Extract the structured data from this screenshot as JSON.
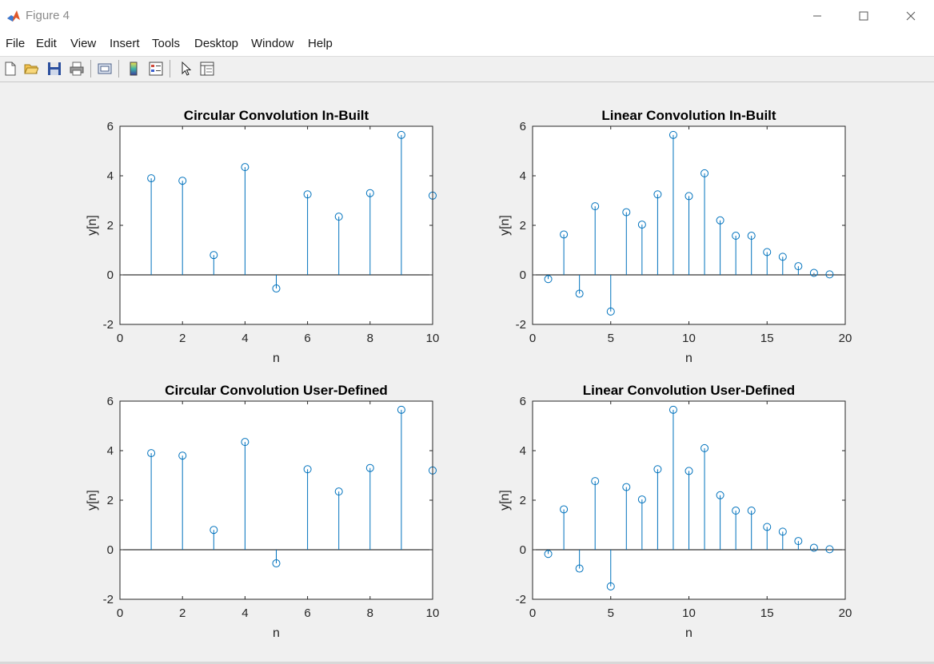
{
  "window": {
    "title": "Figure 4",
    "controls": {
      "minimize": "—",
      "maximize": "☐",
      "close": "✕"
    }
  },
  "menu": [
    "File",
    "Edit",
    "View",
    "Insert",
    "Tools",
    "Desktop",
    "Window",
    "Help"
  ],
  "toolbar": {
    "buttons": [
      "new-figure-icon",
      "open-file-icon",
      "save-icon",
      "print-icon",
      "link-plot-icon",
      "colorbar-icon",
      "legend-icon",
      "pointer-icon",
      "property-inspector-icon"
    ]
  },
  "colors": {
    "stem": "#0072BD",
    "axes_bg": "#ffffff",
    "figure_bg": "#f0f0f0",
    "text": "#262626"
  },
  "chart_data": [
    {
      "type": "scatter",
      "style": "stem",
      "title": "Circular Convolution In-Built",
      "xlabel": "n",
      "ylabel": "y[n]",
      "xlim": [
        0,
        10
      ],
      "ylim": [
        -2,
        6
      ],
      "xticks": [
        0,
        2,
        4,
        6,
        8,
        10
      ],
      "yticks": [
        -2,
        0,
        2,
        4,
        6
      ],
      "grid": false,
      "x": [
        1,
        2,
        3,
        4,
        5,
        6,
        7,
        8,
        9,
        10
      ],
      "y": [
        3.9,
        3.8,
        0.8,
        4.35,
        -0.55,
        3.25,
        2.35,
        3.3,
        5.65,
        3.2
      ]
    },
    {
      "type": "scatter",
      "style": "stem",
      "title": "Linear Convolution In-Built",
      "xlabel": "n",
      "ylabel": "y[n]",
      "xlim": [
        0,
        20
      ],
      "ylim": [
        -2,
        6
      ],
      "xticks": [
        0,
        5,
        10,
        15,
        20
      ],
      "yticks": [
        -2,
        0,
        2,
        4,
        6
      ],
      "grid": false,
      "x": [
        1,
        2,
        3,
        4,
        5,
        6,
        7,
        8,
        9,
        10,
        11,
        12,
        13,
        14,
        15,
        16,
        17,
        18,
        19
      ],
      "y": [
        -0.17,
        1.63,
        -0.76,
        2.77,
        -1.48,
        2.53,
        2.03,
        3.25,
        5.65,
        3.18,
        4.1,
        2.2,
        1.58,
        1.58,
        0.92,
        0.73,
        0.35,
        0.08,
        0.02
      ]
    },
    {
      "type": "scatter",
      "style": "stem",
      "title": "Circular Convolution User-Defined",
      "xlabel": "n",
      "ylabel": "y[n]",
      "xlim": [
        0,
        10
      ],
      "ylim": [
        -2,
        6
      ],
      "xticks": [
        0,
        2,
        4,
        6,
        8,
        10
      ],
      "yticks": [
        -2,
        0,
        2,
        4,
        6
      ],
      "grid": false,
      "x": [
        1,
        2,
        3,
        4,
        5,
        6,
        7,
        8,
        9,
        10
      ],
      "y": [
        3.9,
        3.8,
        0.8,
        4.35,
        -0.55,
        3.25,
        2.35,
        3.3,
        5.65,
        3.2
      ]
    },
    {
      "type": "scatter",
      "style": "stem",
      "title": "Linear Convolution User-Defined",
      "xlabel": "n",
      "ylabel": "y[n]",
      "xlim": [
        0,
        20
      ],
      "ylim": [
        -2,
        6
      ],
      "xticks": [
        0,
        5,
        10,
        15,
        20
      ],
      "yticks": [
        -2,
        0,
        2,
        4,
        6
      ],
      "grid": false,
      "x": [
        1,
        2,
        3,
        4,
        5,
        6,
        7,
        8,
        9,
        10,
        11,
        12,
        13,
        14,
        15,
        16,
        17,
        18,
        19
      ],
      "y": [
        -0.17,
        1.63,
        -0.76,
        2.77,
        -1.48,
        2.53,
        2.03,
        3.25,
        5.65,
        3.18,
        4.1,
        2.2,
        1.58,
        1.58,
        0.92,
        0.73,
        0.35,
        0.08,
        0.02
      ]
    }
  ]
}
